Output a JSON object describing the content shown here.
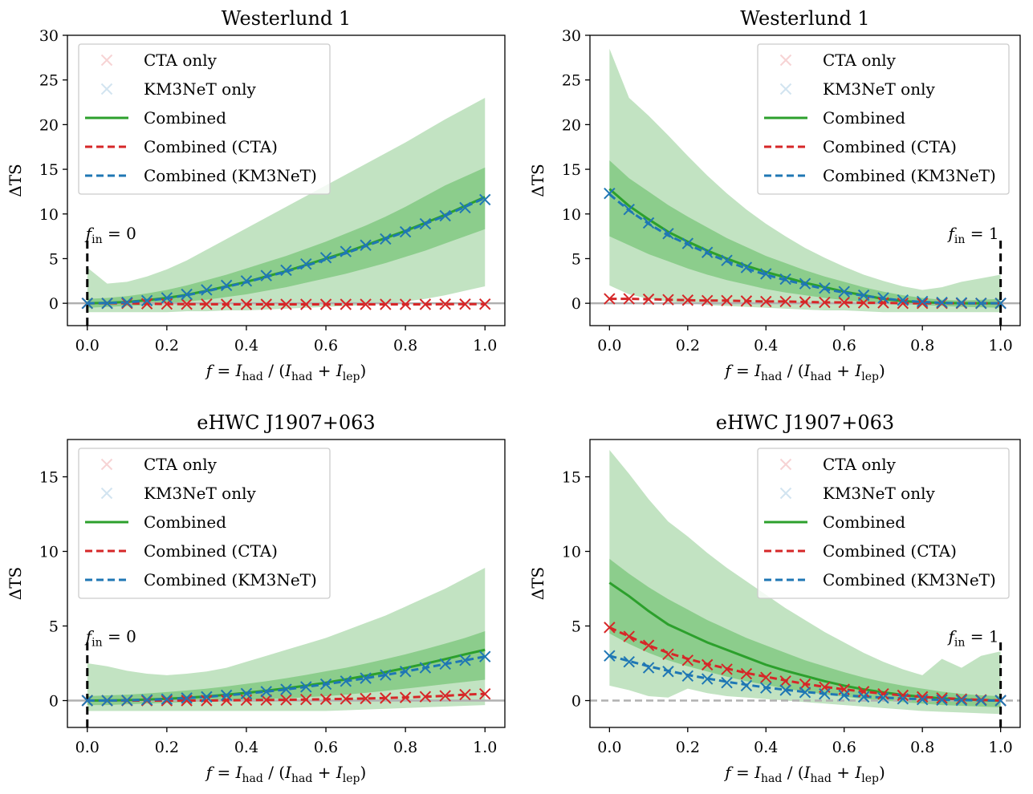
{
  "figure": {
    "colors": {
      "cta": "#d62728",
      "km3net": "#1f77b4",
      "combined": "#2ca02c",
      "band_outer": "#c2e3c2",
      "band_inner": "#8ccd8c",
      "zero_line": "#b0b0b0"
    },
    "xlabel": {
      "f": "f",
      "eq": " = ",
      "I1": "I",
      "had": "had",
      "mid": " / (",
      "I2": "I",
      "had2": "had",
      "plus": " + ",
      "I3": "I",
      "lep": "lep",
      "close": ")"
    },
    "ylabel": "ΔTS",
    "legend": [
      "CTA only",
      "KM3NeT only",
      "Combined",
      "Combined (CTA)",
      "Combined (KM3NeT)"
    ]
  },
  "chart_data": [
    {
      "type": "line",
      "title": "Westerlund 1",
      "ylim": [
        -2.5,
        30
      ],
      "xlim": [
        -0.05,
        1.05
      ],
      "yticks": [
        0,
        5,
        10,
        15,
        20,
        25,
        30
      ],
      "xticks": [
        "0.0",
        "0.2",
        "0.4",
        "0.6",
        "0.8",
        "1.0"
      ],
      "legend_position": "upper-left",
      "marker": {
        "label": "f",
        "sub": "in",
        "text": " = 0",
        "x": 0
      },
      "x": [
        0,
        0.05,
        0.1,
        0.15,
        0.2,
        0.25,
        0.3,
        0.35,
        0.4,
        0.45,
        0.5,
        0.55,
        0.6,
        0.65,
        0.7,
        0.75,
        0.8,
        0.85,
        0.9,
        0.95,
        1.0
      ],
      "series": [
        {
          "name": "CTA only",
          "values": [
            0,
            0,
            0,
            -0.05,
            -0.08,
            -0.1,
            -0.1,
            -0.12,
            -0.12,
            -0.12,
            -0.12,
            -0.12,
            -0.12,
            -0.12,
            -0.12,
            -0.12,
            -0.12,
            -0.12,
            -0.1,
            -0.1,
            -0.1
          ]
        },
        {
          "name": "KM3NeT only",
          "values": [
            0,
            0,
            0.1,
            0.3,
            0.6,
            1.0,
            1.5,
            2.0,
            2.5,
            3.1,
            3.7,
            4.4,
            5.1,
            5.8,
            6.5,
            7.2,
            8.0,
            8.9,
            9.8,
            10.7,
            11.6
          ]
        },
        {
          "name": "Combined",
          "values": [
            0,
            0.05,
            0.15,
            0.35,
            0.6,
            0.95,
            1.4,
            1.9,
            2.4,
            3.0,
            3.6,
            4.3,
            5.0,
            5.7,
            6.5,
            7.3,
            8.1,
            9.0,
            9.9,
            10.9,
            11.9
          ]
        },
        {
          "name": "Combined (CTA)",
          "values": [
            0,
            0,
            0,
            -0.05,
            -0.08,
            -0.1,
            -0.1,
            -0.12,
            -0.12,
            -0.12,
            -0.12,
            -0.12,
            -0.12,
            -0.12,
            -0.12,
            -0.12,
            -0.12,
            -0.12,
            -0.1,
            -0.1,
            -0.1
          ]
        },
        {
          "name": "Combined (KM3NeT)",
          "values": [
            0,
            0.03,
            0.1,
            0.3,
            0.55,
            0.9,
            1.35,
            1.85,
            2.35,
            2.95,
            3.55,
            4.2,
            4.9,
            5.6,
            6.4,
            7.2,
            8.0,
            8.9,
            9.8,
            10.8,
            11.8
          ]
        }
      ],
      "band_outer": {
        "lower": [
          -1.0,
          -1.0,
          -1.0,
          -1.0,
          -1.0,
          -0.9,
          -0.9,
          -0.8,
          -0.8,
          -0.7,
          -0.6,
          -0.5,
          -0.4,
          -0.3,
          -0.2,
          0,
          0.2,
          0.5,
          0.9,
          1.4,
          1.9
        ],
        "upper": [
          4.0,
          2.2,
          2.4,
          3.0,
          3.8,
          4.8,
          6.0,
          7.2,
          8.4,
          9.6,
          10.8,
          12.0,
          13.2,
          14.4,
          15.6,
          16.8,
          18.0,
          19.3,
          20.6,
          21.8,
          23.0
        ]
      },
      "band_inner": {
        "lower": [
          -0.5,
          -0.4,
          -0.3,
          -0.2,
          0,
          0.2,
          0.4,
          0.7,
          1.0,
          1.4,
          1.8,
          2.3,
          2.8,
          3.3,
          3.9,
          4.5,
          5.2,
          5.9,
          6.7,
          7.5,
          8.3
        ],
        "upper": [
          0.5,
          0.6,
          0.8,
          1.1,
          1.5,
          2.0,
          2.6,
          3.2,
          3.9,
          4.6,
          5.3,
          6.1,
          6.9,
          7.8,
          8.7,
          9.7,
          10.8,
          12.0,
          13.2,
          14.2,
          15.2
        ]
      }
    },
    {
      "type": "line",
      "title": "Westerlund 1",
      "ylim": [
        -2.5,
        30
      ],
      "xlim": [
        -0.05,
        1.05
      ],
      "yticks": [
        0,
        5,
        10,
        15,
        20,
        25,
        30
      ],
      "xticks": [
        "0.0",
        "0.2",
        "0.4",
        "0.6",
        "0.8",
        "1.0"
      ],
      "legend_position": "upper-right",
      "marker": {
        "label": "f",
        "sub": "in",
        "text": " = 1",
        "x": 1
      },
      "x": [
        0,
        0.05,
        0.1,
        0.15,
        0.2,
        0.25,
        0.3,
        0.35,
        0.4,
        0.45,
        0.5,
        0.55,
        0.6,
        0.65,
        0.7,
        0.75,
        0.8,
        0.85,
        0.9,
        0.95,
        1.0
      ],
      "series": [
        {
          "name": "CTA only",
          "values": [
            0.5,
            0.5,
            0.45,
            0.4,
            0.35,
            0.3,
            0.3,
            0.25,
            0.2,
            0.2,
            0.15,
            0.1,
            0.1,
            0.05,
            0.05,
            0,
            0,
            0,
            0,
            0,
            0
          ]
        },
        {
          "name": "KM3NeT only",
          "values": [
            12.3,
            10.5,
            9.0,
            7.8,
            6.7,
            5.7,
            4.8,
            4.0,
            3.3,
            2.7,
            2.2,
            1.7,
            1.3,
            0.9,
            0.6,
            0.35,
            0.2,
            0.1,
            0.05,
            0,
            0
          ]
        },
        {
          "name": "Combined",
          "values": [
            12.8,
            10.9,
            9.4,
            8.0,
            6.9,
            5.9,
            5.0,
            4.2,
            3.5,
            2.9,
            2.3,
            1.8,
            1.3,
            0.9,
            0.5,
            0.25,
            0.1,
            0.05,
            0,
            0,
            0
          ]
        },
        {
          "name": "Combined (CTA)",
          "values": [
            0.5,
            0.5,
            0.45,
            0.4,
            0.35,
            0.3,
            0.3,
            0.25,
            0.2,
            0.2,
            0.15,
            0.1,
            0.1,
            0.05,
            0.05,
            0,
            0,
            0,
            0,
            0,
            0
          ]
        },
        {
          "name": "Combined (KM3NeT)",
          "values": [
            12.2,
            10.4,
            8.9,
            7.6,
            6.6,
            5.6,
            4.7,
            3.9,
            3.2,
            2.6,
            2.1,
            1.6,
            1.2,
            0.85,
            0.55,
            0.3,
            0.15,
            0.05,
            0,
            0,
            0
          ]
        }
      ],
      "band_outer": {
        "lower": [
          2.0,
          1.0,
          0.5,
          0.2,
          0,
          -0.2,
          -0.3,
          -0.4,
          -0.5,
          -0.6,
          -0.7,
          -0.8,
          -0.8,
          -0.9,
          -1.0,
          -1.0,
          -1.0,
          -1.0,
          -1.0,
          -1.0,
          -1.0
        ],
        "upper": [
          28.5,
          23.0,
          21.0,
          18.8,
          16.5,
          14.3,
          12.3,
          10.5,
          8.9,
          7.5,
          6.2,
          5.1,
          4.1,
          3.2,
          2.5,
          1.9,
          1.5,
          1.8,
          2.4,
          2.8,
          3.2
        ]
      },
      "band_inner": {
        "lower": [
          7.5,
          6.5,
          5.5,
          4.7,
          3.9,
          3.2,
          2.6,
          2.1,
          1.6,
          1.2,
          0.9,
          0.6,
          0.35,
          0.15,
          0,
          -0.1,
          -0.2,
          -0.3,
          -0.4,
          -0.45,
          -0.5
        ],
        "upper": [
          16.0,
          14.0,
          12.5,
          11.0,
          9.7,
          8.5,
          7.3,
          6.3,
          5.3,
          4.5,
          3.7,
          3.0,
          2.4,
          1.8,
          1.3,
          0.9,
          0.6,
          0.4,
          0.3,
          0.4,
          0.5
        ]
      }
    },
    {
      "type": "line",
      "title": "eHWC J1907+063",
      "ylim": [
        -1.8,
        17.5
      ],
      "xlim": [
        -0.05,
        1.05
      ],
      "yticks": [
        0,
        5,
        10,
        15
      ],
      "xticks": [
        "0.0",
        "0.2",
        "0.4",
        "0.6",
        "0.8",
        "1.0"
      ],
      "legend_position": "upper-left",
      "marker": {
        "label": "f",
        "sub": "in",
        "text": " = 0",
        "x": 0
      },
      "x": [
        0,
        0.05,
        0.1,
        0.15,
        0.2,
        0.25,
        0.3,
        0.35,
        0.4,
        0.45,
        0.5,
        0.55,
        0.6,
        0.65,
        0.7,
        0.75,
        0.8,
        0.85,
        0.9,
        0.95,
        1.0
      ],
      "series": [
        {
          "name": "CTA only",
          "values": [
            0,
            0,
            0,
            0,
            0,
            0,
            0,
            0.02,
            0.03,
            0.04,
            0.05,
            0.07,
            0.09,
            0.11,
            0.14,
            0.17,
            0.21,
            0.26,
            0.32,
            0.4,
            0.45
          ]
        },
        {
          "name": "KM3NeT only",
          "values": [
            0,
            0,
            0.02,
            0.05,
            0.1,
            0.17,
            0.25,
            0.35,
            0.47,
            0.6,
            0.75,
            0.92,
            1.1,
            1.3,
            1.5,
            1.72,
            1.95,
            2.2,
            2.45,
            2.7,
            2.95
          ]
        },
        {
          "name": "Combined",
          "values": [
            0,
            0.01,
            0.03,
            0.07,
            0.12,
            0.19,
            0.28,
            0.39,
            0.52,
            0.66,
            0.82,
            1.0,
            1.2,
            1.42,
            1.66,
            1.91,
            2.18,
            2.47,
            2.78,
            3.1,
            3.4
          ]
        },
        {
          "name": "Combined (CTA)",
          "values": [
            0,
            0,
            0,
            0,
            0,
            0,
            0,
            0.02,
            0.03,
            0.04,
            0.05,
            0.07,
            0.09,
            0.11,
            0.14,
            0.17,
            0.21,
            0.26,
            0.32,
            0.4,
            0.45
          ]
        },
        {
          "name": "Combined (KM3NeT)",
          "values": [
            0,
            0,
            0.02,
            0.05,
            0.1,
            0.17,
            0.25,
            0.35,
            0.47,
            0.6,
            0.75,
            0.92,
            1.1,
            1.3,
            1.5,
            1.72,
            1.95,
            2.2,
            2.45,
            2.7,
            2.95
          ]
        }
      ],
      "band_outer": {
        "lower": [
          -0.7,
          -0.7,
          -0.7,
          -0.7,
          -0.7,
          -0.7,
          -0.7,
          -0.7,
          -0.7,
          -0.7,
          -0.7,
          -0.7,
          -0.7,
          -0.65,
          -0.6,
          -0.55,
          -0.5,
          -0.45,
          -0.4,
          -0.35,
          -0.3
        ],
        "upper": [
          2.5,
          2.3,
          2.0,
          1.8,
          1.7,
          1.8,
          1.95,
          2.2,
          2.6,
          3.0,
          3.4,
          3.8,
          4.2,
          4.7,
          5.2,
          5.7,
          6.3,
          6.9,
          7.5,
          8.2,
          8.9
        ]
      },
      "band_inner": {
        "lower": [
          -0.3,
          -0.3,
          -0.25,
          -0.2,
          -0.15,
          -0.1,
          -0.05,
          0,
          0.05,
          0.1,
          0.15,
          0.22,
          0.3,
          0.4,
          0.52,
          0.65,
          0.8,
          0.95,
          1.1,
          1.25,
          1.4
        ],
        "upper": [
          0.3,
          0.35,
          0.4,
          0.48,
          0.57,
          0.68,
          0.8,
          0.95,
          1.12,
          1.3,
          1.5,
          1.72,
          1.96,
          2.2,
          2.48,
          2.78,
          3.1,
          3.45,
          3.82,
          4.2,
          4.65
        ]
      }
    },
    {
      "type": "line",
      "title": "eHWC J1907+063",
      "ylim": [
        -1.8,
        17.5
      ],
      "xlim": [
        -0.05,
        1.05
      ],
      "yticks": [
        0,
        5,
        10,
        15
      ],
      "xticks": [
        "0.0",
        "0.2",
        "0.4",
        "0.6",
        "0.8",
        "1.0"
      ],
      "legend_position": "upper-right",
      "marker": {
        "label": "f",
        "sub": "in",
        "text": " = 1",
        "x": 1
      },
      "x": [
        0,
        0.05,
        0.1,
        0.15,
        0.2,
        0.25,
        0.3,
        0.35,
        0.4,
        0.45,
        0.5,
        0.55,
        0.6,
        0.65,
        0.7,
        0.75,
        0.8,
        0.85,
        0.9,
        0.95,
        1.0
      ],
      "series": [
        {
          "name": "CTA only",
          "values": [
            4.9,
            4.3,
            3.7,
            3.1,
            2.7,
            2.4,
            2.1,
            1.8,
            1.55,
            1.3,
            1.1,
            0.9,
            0.75,
            0.6,
            0.45,
            0.35,
            0.25,
            0.17,
            0.1,
            0.05,
            0
          ]
        },
        {
          "name": "KM3NeT only",
          "values": [
            3.0,
            2.6,
            2.2,
            1.95,
            1.65,
            1.45,
            1.2,
            1.0,
            0.85,
            0.7,
            0.55,
            0.45,
            0.35,
            0.25,
            0.18,
            0.12,
            0.07,
            0.04,
            0.02,
            0.01,
            0
          ]
        },
        {
          "name": "Combined",
          "values": [
            7.9,
            7.0,
            6.0,
            5.1,
            4.5,
            3.9,
            3.4,
            2.9,
            2.4,
            2.0,
            1.65,
            1.3,
            1.0,
            0.75,
            0.55,
            0.38,
            0.25,
            0.15,
            0.08,
            0.03,
            0
          ]
        },
        {
          "name": "Combined (CTA)",
          "values": [
            4.9,
            4.3,
            3.7,
            3.2,
            2.8,
            2.45,
            2.15,
            1.85,
            1.6,
            1.35,
            1.12,
            0.92,
            0.75,
            0.6,
            0.46,
            0.35,
            0.25,
            0.17,
            0.1,
            0.05,
            0
          ]
        },
        {
          "name": "Combined (KM3NeT)",
          "values": [
            3.0,
            2.65,
            2.3,
            2.0,
            1.72,
            1.48,
            1.26,
            1.06,
            0.88,
            0.72,
            0.58,
            0.46,
            0.36,
            0.27,
            0.2,
            0.14,
            0.09,
            0.05,
            0.03,
            0.01,
            0
          ]
        }
      ],
      "band_outer": {
        "lower": [
          1.0,
          0.7,
          0.3,
          0.2,
          0.8,
          0.5,
          0.3,
          0.2,
          0.1,
          0,
          -0.1,
          -0.2,
          -0.3,
          -0.4,
          -0.5,
          -0.6,
          -0.7,
          -0.75,
          -0.8,
          -0.85,
          -0.9
        ],
        "upper": [
          16.8,
          15.2,
          13.5,
          12.0,
          11.0,
          9.9,
          8.9,
          8.0,
          7.1,
          6.2,
          5.4,
          4.6,
          3.9,
          3.2,
          2.6,
          2.1,
          1.7,
          2.8,
          2.2,
          3.0,
          3.3
        ]
      },
      "band_inner": {
        "lower": [
          4.5,
          3.8,
          3.2,
          2.7,
          2.3,
          1.95,
          1.6,
          1.3,
          1.05,
          0.8,
          0.6,
          0.42,
          0.26,
          0.12,
          0,
          -0.1,
          -0.2,
          -0.3,
          -0.35,
          -0.4,
          -0.45
        ],
        "upper": [
          9.5,
          8.5,
          7.6,
          6.8,
          6.1,
          5.4,
          4.8,
          4.2,
          3.7,
          3.2,
          2.7,
          2.3,
          1.9,
          1.55,
          1.25,
          1.0,
          0.8,
          0.6,
          0.45,
          0.35,
          0.3
        ]
      }
    }
  ]
}
